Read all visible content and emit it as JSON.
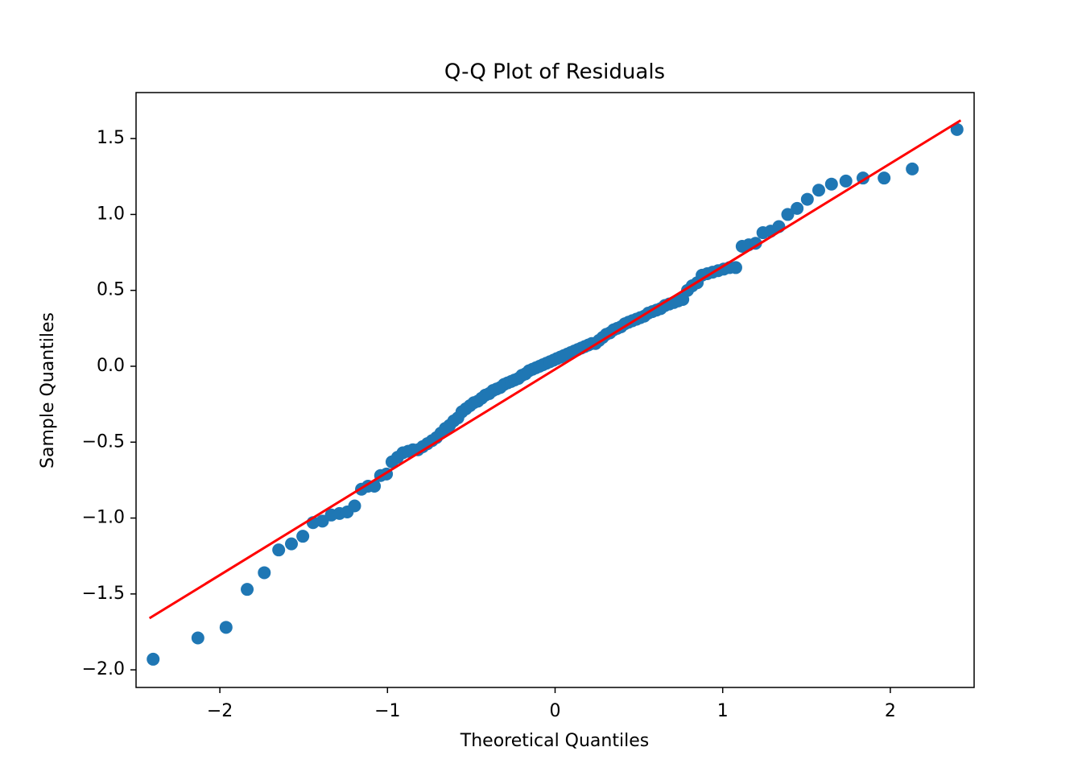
{
  "chart_data": {
    "type": "scatter",
    "title": "Q-Q Plot of Residuals",
    "x_label": "Theoretical Quantiles",
    "y_label": "Sample Quantiles",
    "xlim": [
      -2.5,
      2.5
    ],
    "ylim": [
      -2.116,
      1.803
    ],
    "xticks": [
      {
        "value": -2,
        "label": "−2"
      },
      {
        "value": -1,
        "label": "−1"
      },
      0,
      1,
      2
    ],
    "yticks": [
      {
        "value": -2.0,
        "label": "−2.0"
      },
      {
        "value": -1.5,
        "label": "−1.5"
      },
      {
        "value": -1.0,
        "label": "−1.0"
      },
      {
        "value": -0.5,
        "label": "−0.5"
      },
      {
        "value": 0.0,
        "label": "0.0"
      },
      0.5,
      {
        "value": 1.0,
        "label": "1.0"
      },
      1.5
    ],
    "grid": false,
    "series": [
      {
        "type": "scatter",
        "color": "#1f77b4",
        "x": [
          -2.398,
          -2.131,
          -1.963,
          -1.837,
          -1.735,
          -1.649,
          -1.573,
          -1.505,
          -1.444,
          -1.388,
          -1.335,
          -1.286,
          -1.24,
          -1.196,
          -1.155,
          -1.116,
          -1.078,
          -1.041,
          -1.006,
          -0.973,
          -0.94,
          -0.908,
          -0.877,
          -0.848,
          -0.818,
          -0.79,
          -0.762,
          -0.734,
          -0.708,
          -0.681,
          -0.655,
          -0.63,
          -0.605,
          -0.58,
          -0.556,
          -0.532,
          -0.508,
          -0.485,
          -0.461,
          -0.438,
          -0.416,
          -0.393,
          -0.371,
          -0.349,
          -0.327,
          -0.305,
          -0.284,
          -0.262,
          -0.241,
          -0.219,
          -0.198,
          -0.177,
          -0.156,
          -0.135,
          -0.114,
          -0.093,
          -0.073,
          -0.052,
          -0.031,
          -0.01,
          0.01,
          0.031,
          0.052,
          0.073,
          0.093,
          0.114,
          0.135,
          0.156,
          0.177,
          0.198,
          0.219,
          0.241,
          0.262,
          0.284,
          0.305,
          0.327,
          0.349,
          0.371,
          0.393,
          0.416,
          0.438,
          0.461,
          0.485,
          0.508,
          0.532,
          0.556,
          0.58,
          0.605,
          0.63,
          0.655,
          0.681,
          0.708,
          0.734,
          0.762,
          0.79,
          0.818,
          0.848,
          0.877,
          0.908,
          0.94,
          0.973,
          1.006,
          1.041,
          1.078,
          1.116,
          1.155,
          1.196,
          1.24,
          1.286,
          1.335,
          1.388,
          1.444,
          1.505,
          1.573,
          1.649,
          1.735,
          1.837,
          1.963,
          2.131,
          2.398
        ],
        "values": [
          -1.93,
          -1.79,
          -1.72,
          -1.47,
          -1.36,
          -1.21,
          -1.17,
          -1.12,
          -1.03,
          -1.02,
          -0.98,
          -0.97,
          -0.96,
          -0.92,
          -0.81,
          -0.79,
          -0.79,
          -0.72,
          -0.71,
          -0.63,
          -0.6,
          -0.57,
          -0.56,
          -0.55,
          -0.55,
          -0.53,
          -0.51,
          -0.49,
          -0.47,
          -0.44,
          -0.41,
          -0.39,
          -0.36,
          -0.34,
          -0.3,
          -0.28,
          -0.26,
          -0.24,
          -0.23,
          -0.21,
          -0.19,
          -0.18,
          -0.16,
          -0.15,
          -0.14,
          -0.12,
          -0.11,
          -0.1,
          -0.09,
          -0.08,
          -0.06,
          -0.05,
          -0.03,
          -0.02,
          -0.01,
          0.0,
          0.01,
          0.02,
          0.03,
          0.04,
          0.05,
          0.06,
          0.07,
          0.08,
          0.09,
          0.1,
          0.11,
          0.12,
          0.13,
          0.14,
          0.15,
          0.15,
          0.17,
          0.19,
          0.21,
          0.22,
          0.24,
          0.25,
          0.26,
          0.28,
          0.29,
          0.3,
          0.31,
          0.32,
          0.33,
          0.35,
          0.36,
          0.37,
          0.38,
          0.4,
          0.41,
          0.42,
          0.43,
          0.44,
          0.5,
          0.53,
          0.55,
          0.6,
          0.61,
          0.62,
          0.63,
          0.64,
          0.65,
          0.65,
          0.79,
          0.8,
          0.81,
          0.88,
          0.89,
          0.92,
          1.0,
          1.04,
          1.1,
          1.16,
          1.2,
          1.22,
          1.24,
          1.24,
          1.3,
          1.56
        ]
      },
      {
        "type": "line",
        "color": "#ff0000",
        "x": [
          -2.42,
          2.42
        ],
        "values": [
          -1.66,
          1.62
        ]
      }
    ]
  }
}
